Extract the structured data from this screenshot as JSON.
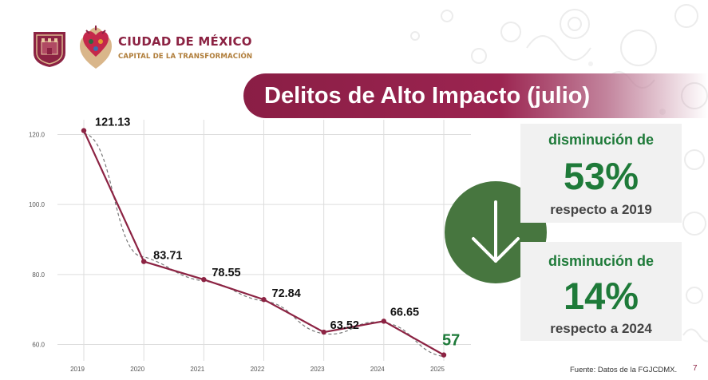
{
  "header": {
    "city_name": "CIUDAD DE MÉXICO",
    "city_slogan": "CAPITAL DE LA TRANSFORMACIÓN"
  },
  "banner": {
    "title": "Delitos de Alto Impacto (julio)"
  },
  "chart_data": {
    "type": "line",
    "title": "Delitos de Alto Impacto (julio)",
    "x": [
      "2019",
      "2020",
      "2021",
      "2022",
      "2023",
      "2024",
      "2025"
    ],
    "series": [
      {
        "values": [
          121.13,
          83.71,
          78.55,
          72.84,
          63.52,
          66.65,
          57
        ]
      }
    ],
    "data_labels": [
      "121.13",
      "83.71",
      "78.55",
      "72.84",
      "63.52",
      "66.65",
      "57"
    ],
    "trendline": true,
    "y_ticks": [
      "60.0",
      "80.0",
      "100.0",
      "120.0"
    ],
    "ylim": [
      56,
      124
    ],
    "grid": true,
    "colors": {
      "line": "#8c2343",
      "trend": "#777777",
      "last_label": "#1e7a39"
    }
  },
  "stats": [
    {
      "label": "disminución de",
      "value": "53%",
      "reference": "respecto a 2019"
    },
    {
      "label": "disminución de",
      "value": "14%",
      "reference": "respecto a 2024"
    }
  ],
  "trend_icon": "arrow-down-icon",
  "footer": {
    "source": "Fuente: Datos de la FGJCDMX.",
    "page": "7"
  },
  "colors": {
    "brand": "#8c2343",
    "gold": "#b07d3a",
    "green": "#1e7a39",
    "circle": "#47763f"
  }
}
